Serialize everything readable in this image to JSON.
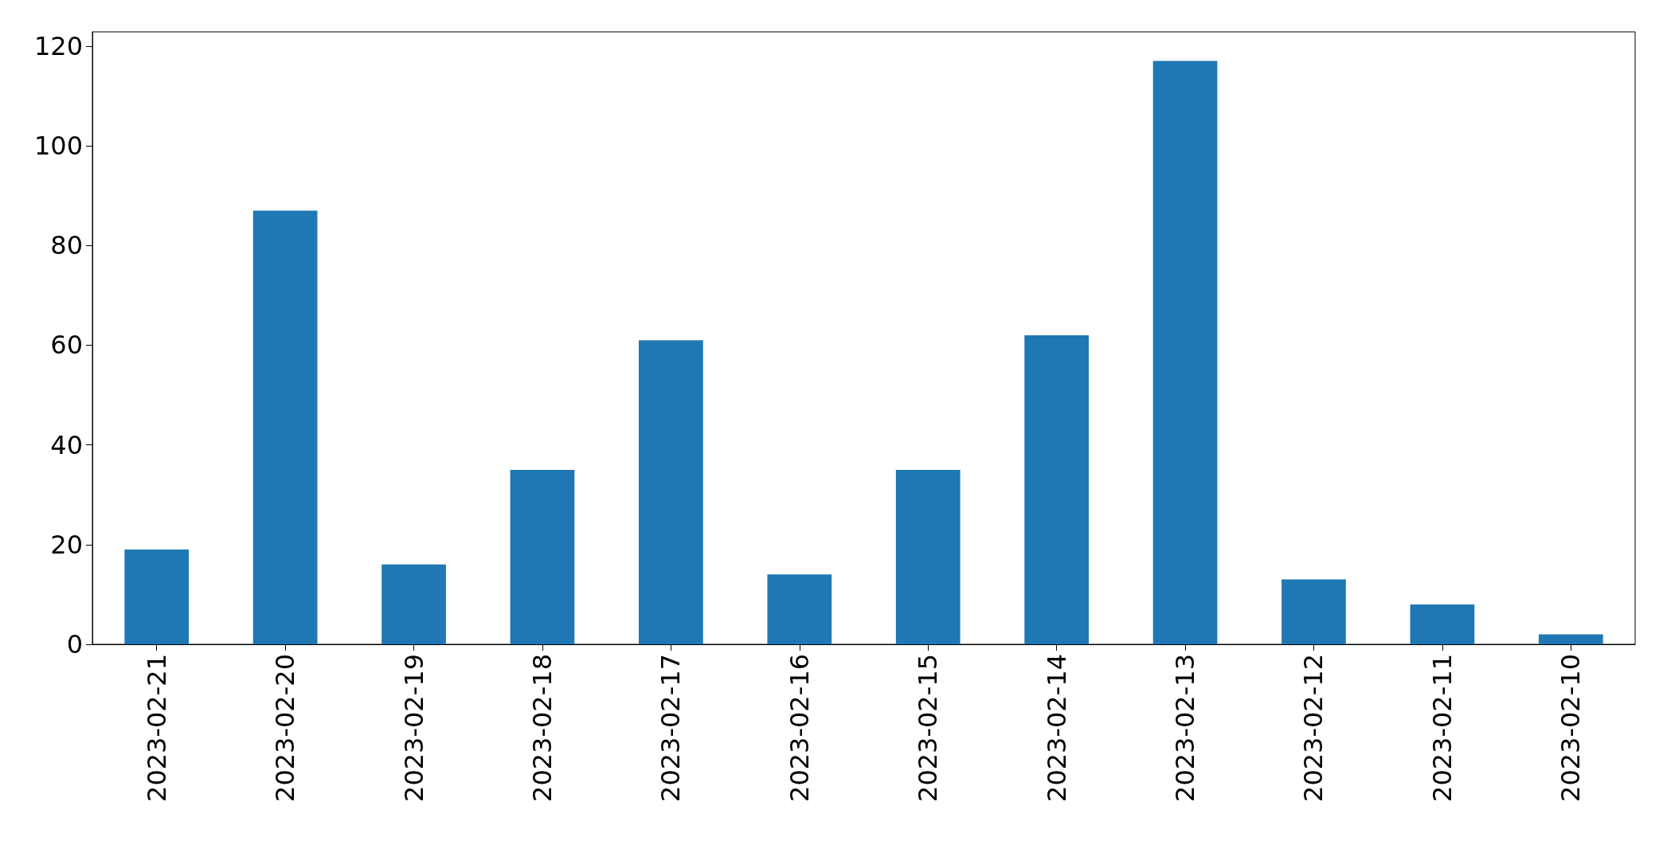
{
  "chart_data": {
    "type": "bar",
    "categories": [
      "2023-02-21",
      "2023-02-20",
      "2023-02-19",
      "2023-02-18",
      "2023-02-17",
      "2023-02-16",
      "2023-02-15",
      "2023-02-14",
      "2023-02-13",
      "2023-02-12",
      "2023-02-11",
      "2023-02-10"
    ],
    "values": [
      19,
      87,
      16,
      35,
      61,
      14,
      35,
      62,
      117,
      13,
      8,
      2
    ],
    "color": "#1f77b4",
    "ylim": [
      0,
      122.85
    ],
    "yticks": [
      0,
      20,
      40,
      60,
      80,
      100,
      120
    ],
    "grid": false
  }
}
